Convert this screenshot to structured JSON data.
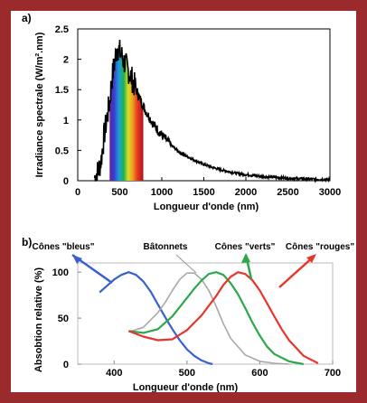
{
  "colors": {
    "frame": "#9b2a2d",
    "blue": "#3a5fd0",
    "gray": "#a8a8a8",
    "green": "#2aa84a",
    "red": "#e8352b"
  },
  "chart_data": [
    {
      "panel_label": "a)",
      "type": "line",
      "xlabel": "Longueur d'onde (nm)",
      "ylabel": "Irradiance spectrale (W/m².nm)",
      "xlim": [
        0,
        3000
      ],
      "ylim": [
        0,
        2.5
      ],
      "x_ticks": [
        "0",
        "500",
        "1000",
        "1500",
        "2000",
        "2500",
        "3000"
      ],
      "y_ticks": [
        "0",
        "0.5",
        "1",
        "1.5",
        "2",
        "2.5"
      ],
      "visible_spectrum_band": [
        380,
        780
      ],
      "series": [
        {
          "x": [
            200,
            250,
            280,
            300,
            320,
            350,
            380,
            400,
            420,
            450,
            470,
            480,
            500,
            520,
            550,
            600,
            650,
            700,
            750,
            800,
            900,
            1000,
            1100,
            1200,
            1300,
            1400,
            1500,
            1600,
            1700,
            1800,
            1900,
            2000,
            2200,
            2400,
            2600,
            2800,
            3000
          ],
          "y": [
            0.05,
            0.18,
            0.35,
            0.6,
            0.8,
            1.05,
            1.3,
            1.6,
            1.8,
            2.05,
            2.2,
            2.18,
            2.12,
            2.07,
            1.96,
            1.82,
            1.66,
            1.48,
            1.32,
            1.17,
            0.93,
            0.75,
            0.6,
            0.48,
            0.4,
            0.33,
            0.27,
            0.22,
            0.18,
            0.15,
            0.12,
            0.1,
            0.07,
            0.05,
            0.035,
            0.025,
            0.02
          ]
        }
      ]
    },
    {
      "panel_label": "b)",
      "type": "line",
      "xlabel": "Longueur d'onde (nm)",
      "ylabel": "Absobtion relative (%)",
      "xlim": [
        350,
        700
      ],
      "ylim": [
        0,
        110
      ],
      "x_ticks": [
        "400",
        "500",
        "600",
        "700"
      ],
      "y_ticks": [
        "0",
        "50",
        "100"
      ],
      "series": [
        {
          "name": "Cônes \"bleus\"",
          "color": "#3a5fd0",
          "x": [
            380,
            400,
            410,
            420,
            430,
            440,
            450,
            460,
            470,
            480,
            490,
            500,
            510,
            520,
            530,
            535
          ],
          "y": [
            78,
            92,
            97,
            100,
            97,
            90,
            79,
            65,
            51,
            38,
            26,
            16,
            9,
            4,
            1,
            0
          ]
        },
        {
          "name": "Bâtonnets",
          "color": "#a8a8a8",
          "x": [
            420,
            440,
            460,
            470,
            480,
            490,
            500,
            510,
            520,
            530,
            540,
            550,
            560,
            580,
            600,
            620,
            640
          ],
          "y": [
            35,
            40,
            56,
            67,
            80,
            92,
            99,
            99,
            92,
            80,
            63,
            44,
            28,
            10,
            3,
            1,
            0
          ]
        },
        {
          "name": "Cônes \"verts\"",
          "color": "#2aa84a",
          "x": [
            420,
            440,
            460,
            480,
            500,
            510,
            520,
            530,
            540,
            550,
            560,
            570,
            580,
            590,
            600,
            610,
            620,
            640,
            660
          ],
          "y": [
            36,
            34,
            38,
            52,
            72,
            82,
            91,
            98,
            100,
            97,
            88,
            76,
            61,
            45,
            31,
            19,
            11,
            3,
            0
          ]
        },
        {
          "name": "Cônes \"rouges\"",
          "color": "#e8352b",
          "x": [
            420,
            440,
            460,
            480,
            500,
            520,
            540,
            550,
            560,
            570,
            580,
            590,
            600,
            610,
            620,
            630,
            640,
            660,
            680
          ],
          "y": [
            36,
            30,
            26,
            27,
            37,
            53,
            74,
            86,
            95,
            100,
            98,
            91,
            80,
            66,
            52,
            38,
            26,
            9,
            1
          ]
        }
      ]
    }
  ]
}
